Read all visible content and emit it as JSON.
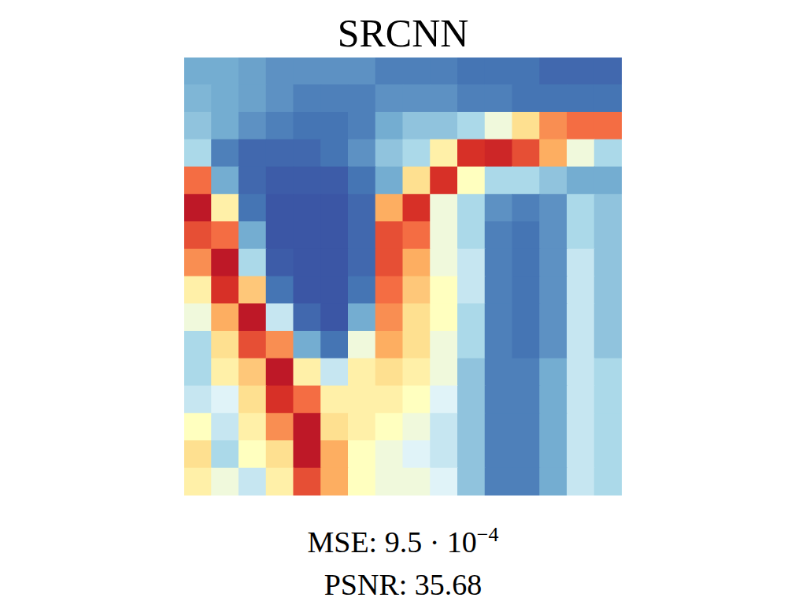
{
  "chart_data": {
    "type": "heatmap",
    "title": "SRCNN",
    "tick_labels": false,
    "annotations": [
      {
        "text": "MSE: 9.5 · 10",
        "superscript": "−4"
      },
      {
        "text": "PSNR: 35.68"
      }
    ],
    "cells": [
      [
        0.2,
        0.2,
        0.18,
        0.15,
        0.15,
        0.15,
        0.15,
        0.12,
        0.12,
        0.12,
        0.1,
        0.1,
        0.1,
        0.08,
        0.08,
        0.08
      ],
      [
        0.22,
        0.2,
        0.18,
        0.15,
        0.12,
        0.12,
        0.12,
        0.15,
        0.15,
        0.15,
        0.12,
        0.12,
        0.1,
        0.1,
        0.1,
        0.1
      ],
      [
        0.25,
        0.2,
        0.15,
        0.12,
        0.1,
        0.1,
        0.12,
        0.2,
        0.25,
        0.25,
        0.3,
        0.45,
        0.6,
        0.75,
        0.8,
        0.8
      ],
      [
        0.3,
        0.12,
        0.08,
        0.08,
        0.08,
        0.1,
        0.15,
        0.25,
        0.3,
        0.55,
        0.9,
        0.92,
        0.85,
        0.7,
        0.45,
        0.3
      ],
      [
        0.8,
        0.2,
        0.08,
        0.06,
        0.06,
        0.06,
        0.1,
        0.2,
        0.6,
        0.9,
        0.5,
        0.3,
        0.3,
        0.25,
        0.2,
        0.2
      ],
      [
        0.95,
        0.55,
        0.1,
        0.05,
        0.05,
        0.05,
        0.08,
        0.7,
        0.9,
        0.45,
        0.3,
        0.15,
        0.12,
        0.15,
        0.3,
        0.25
      ],
      [
        0.85,
        0.8,
        0.2,
        0.05,
        0.05,
        0.05,
        0.08,
        0.85,
        0.8,
        0.45,
        0.3,
        0.12,
        0.1,
        0.15,
        0.3,
        0.25
      ],
      [
        0.75,
        0.95,
        0.3,
        0.06,
        0.05,
        0.05,
        0.08,
        0.85,
        0.7,
        0.45,
        0.35,
        0.12,
        0.1,
        0.15,
        0.35,
        0.25
      ],
      [
        0.55,
        0.9,
        0.65,
        0.1,
        0.05,
        0.05,
        0.1,
        0.8,
        0.65,
        0.5,
        0.35,
        0.12,
        0.1,
        0.15,
        0.35,
        0.25
      ],
      [
        0.45,
        0.7,
        0.95,
        0.35,
        0.08,
        0.05,
        0.2,
        0.75,
        0.6,
        0.5,
        0.3,
        0.12,
        0.1,
        0.15,
        0.35,
        0.25
      ],
      [
        0.3,
        0.6,
        0.85,
        0.75,
        0.2,
        0.1,
        0.45,
        0.7,
        0.6,
        0.45,
        0.3,
        0.12,
        0.1,
        0.15,
        0.35,
        0.25
      ],
      [
        0.3,
        0.55,
        0.65,
        0.95,
        0.55,
        0.35,
        0.55,
        0.6,
        0.55,
        0.45,
        0.25,
        0.12,
        0.12,
        0.2,
        0.35,
        0.3
      ],
      [
        0.35,
        0.4,
        0.6,
        0.9,
        0.8,
        0.55,
        0.55,
        0.55,
        0.5,
        0.4,
        0.25,
        0.12,
        0.12,
        0.2,
        0.35,
        0.3
      ],
      [
        0.5,
        0.35,
        0.55,
        0.75,
        0.95,
        0.6,
        0.55,
        0.5,
        0.45,
        0.35,
        0.25,
        0.12,
        0.12,
        0.2,
        0.35,
        0.3
      ],
      [
        0.6,
        0.3,
        0.5,
        0.6,
        0.95,
        0.7,
        0.5,
        0.45,
        0.4,
        0.35,
        0.25,
        0.12,
        0.12,
        0.2,
        0.35,
        0.3
      ],
      [
        0.55,
        0.45,
        0.35,
        0.55,
        0.85,
        0.7,
        0.5,
        0.45,
        0.45,
        0.4,
        0.25,
        0.12,
        0.12,
        0.2,
        0.35,
        0.3
      ]
    ]
  }
}
